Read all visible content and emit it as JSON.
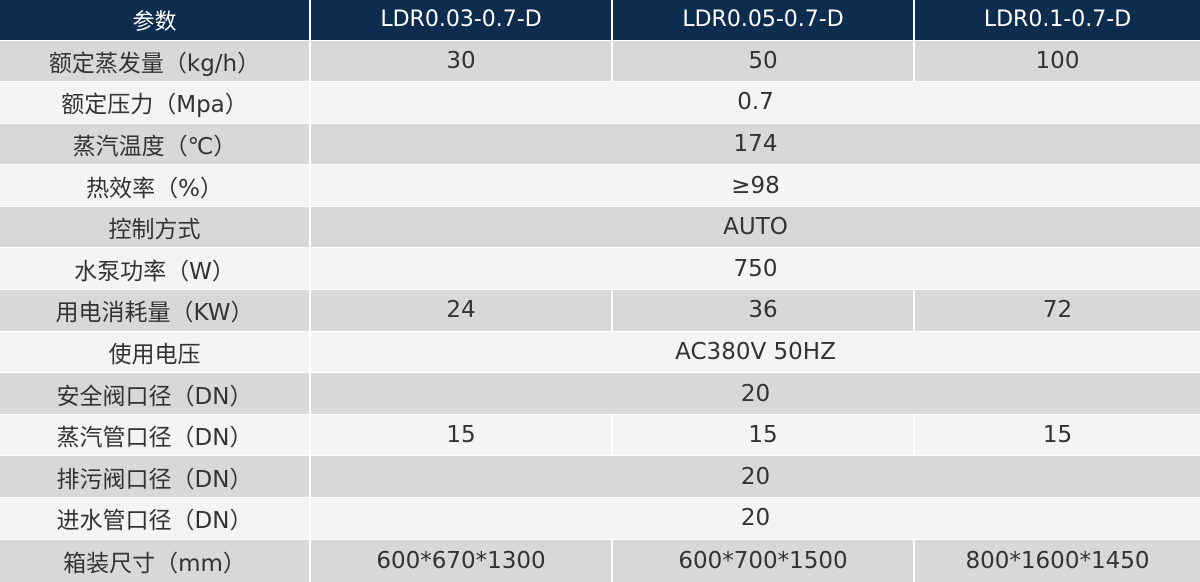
{
  "table": {
    "header": {
      "param_label": "参数",
      "models": [
        "LDR0.03-0.7-D",
        "LDR0.05-0.7-D",
        "LDR0.1-0.7-D"
      ]
    },
    "rows": [
      {
        "label": "额定蒸发量（kg/h）",
        "values": [
          "30",
          "50",
          "100"
        ]
      },
      {
        "label": "额定压力（Mpa）",
        "value": "0.7"
      },
      {
        "label": "蒸汽温度（℃）",
        "value": "174"
      },
      {
        "label": "热效率（%）",
        "value": "≥98"
      },
      {
        "label": "控制方式",
        "value": "AUTO"
      },
      {
        "label": "水泵功率（W）",
        "value": "750"
      },
      {
        "label": "用电消耗量（KW）",
        "values": [
          "24",
          "36",
          "72"
        ]
      },
      {
        "label": "使用电压",
        "value": "AC380V 50HZ"
      },
      {
        "label": "安全阀口径（DN）",
        "value": "20"
      },
      {
        "label": "蒸汽管口径（DN）",
        "values": [
          "15",
          "15",
          "15"
        ]
      },
      {
        "label": "排污阀口径（DN）",
        "value": "20"
      },
      {
        "label": "进水管口径（DN）",
        "value": "20"
      },
      {
        "label": "箱装尺寸（mm）",
        "values": [
          "600*670*1300",
          "600*700*1500",
          "800*1600*1450"
        ]
      }
    ]
  },
  "colors": {
    "header_bg": "#0d2c4e",
    "header_text": "#ffffff",
    "row_shaded": "#d6d8da",
    "row_plain": "#f4f4f5",
    "body_text": "#333333"
  }
}
